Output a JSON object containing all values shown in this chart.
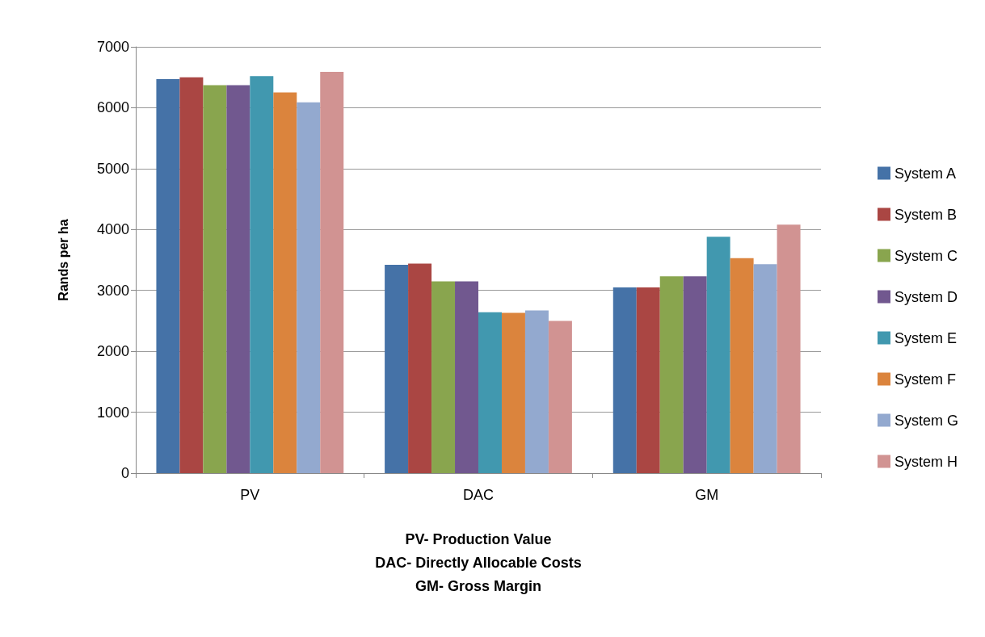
{
  "chart_data": {
    "type": "bar",
    "ylabel": "Rands per ha",
    "categories": [
      "PV",
      "DAC",
      "GM"
    ],
    "series": [
      {
        "name": "System A",
        "color": "#4572a7",
        "values": [
          6470,
          3420,
          3050
        ]
      },
      {
        "name": "System B",
        "color": "#aa4643",
        "values": [
          6500,
          3440,
          3050
        ]
      },
      {
        "name": "System C",
        "color": "#89a54e",
        "values": [
          6370,
          3150,
          3230
        ]
      },
      {
        "name": "System D",
        "color": "#71588f",
        "values": [
          6370,
          3150,
          3230
        ]
      },
      {
        "name": "System E",
        "color": "#4198af",
        "values": [
          6520,
          2640,
          3880
        ]
      },
      {
        "name": "System F",
        "color": "#db843d",
        "values": [
          6250,
          2630,
          3530
        ]
      },
      {
        "name": "System G",
        "color": "#93a9cf",
        "values": [
          6090,
          2670,
          3430
        ]
      },
      {
        "name": "System H",
        "color": "#d19392",
        "values": [
          6590,
          2500,
          4080
        ]
      }
    ],
    "ylim": [
      0,
      7000
    ],
    "yticks": [
      0,
      1000,
      2000,
      3000,
      4000,
      5000,
      6000,
      7000
    ],
    "grid": "y",
    "legend": "right",
    "annotations": [
      "PV- Production Value",
      "DAC- Directly Allocable Costs",
      "GM- Gross Margin"
    ]
  }
}
